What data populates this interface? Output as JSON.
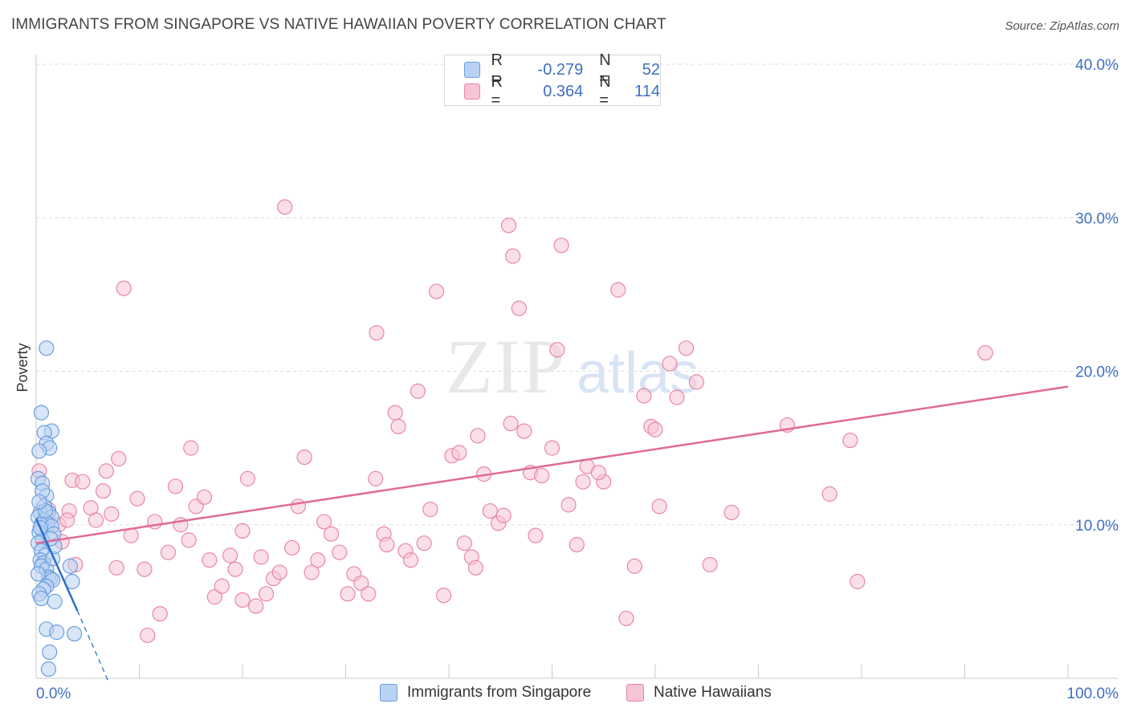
{
  "title": "IMMIGRANTS FROM SINGAPORE VS NATIVE HAWAIIAN POVERTY CORRELATION CHART",
  "source": "Source: ZipAtlas.com",
  "watermark": {
    "zip": "ZIP",
    "atlas": "atlas"
  },
  "legend": {
    "row1": {
      "r_label": "R =",
      "r_value": "-0.279",
      "n_label": "N =",
      "n_value": "52"
    },
    "row2": {
      "r_label": "R =",
      "r_value": "0.364",
      "n_label": "N =",
      "n_value": "114"
    }
  },
  "bottom_legend": {
    "series1": "Immigrants from Singapore",
    "series2": "Native Hawaiians"
  },
  "colors": {
    "blue": "#6a9ee0",
    "blue_fill": "#b9d1f3",
    "blue_line": "#2a6fd0",
    "pink": "#e886a7",
    "pink_fill": "#f7c4d4",
    "pink_line": "#e06b94",
    "axis_text": "#3f6fc0"
  },
  "chart_data": {
    "type": "scatter",
    "title": "IMMIGRANTS FROM SINGAPORE VS NATIVE HAWAIIAN POVERTY CORRELATION CHART",
    "xlabel": "",
    "ylabel": "Poverty",
    "xlim": [
      0,
      100
    ],
    "ylim": [
      0,
      40
    ],
    "x_tick_labels": [
      "0.0%",
      "100.0%"
    ],
    "y_ticks": [
      10,
      20,
      30,
      40
    ],
    "y_tick_labels": [
      "10.0%",
      "20.0%",
      "30.0%",
      "40.0%"
    ],
    "series": [
      {
        "name": "Immigrants from Singapore",
        "r": -0.279,
        "n": 52,
        "trend": {
          "x": [
            0,
            4
          ],
          "y": [
            10.4,
            4.4
          ],
          "dashed_x": [
            4,
            7
          ],
          "dashed_y": [
            4.4,
            -0.2
          ]
        },
        "points": [
          [
            1.0,
            21.5
          ],
          [
            0.5,
            17.3
          ],
          [
            1.5,
            16.1
          ],
          [
            0.8,
            16.0
          ],
          [
            1.0,
            15.3
          ],
          [
            1.3,
            15.0
          ],
          [
            0.3,
            14.8
          ],
          [
            0.2,
            13.0
          ],
          [
            0.6,
            12.7
          ],
          [
            1.0,
            11.9
          ],
          [
            0.8,
            11.2
          ],
          [
            0.4,
            10.8
          ],
          [
            1.2,
            10.8
          ],
          [
            0.2,
            10.5
          ],
          [
            1.5,
            10.5
          ],
          [
            0.8,
            10.3
          ],
          [
            1.1,
            10.1
          ],
          [
            0.5,
            10.0
          ],
          [
            1.5,
            9.9
          ],
          [
            0.3,
            9.5
          ],
          [
            1.7,
            9.4
          ],
          [
            0.6,
            9.0
          ],
          [
            0.2,
            8.8
          ],
          [
            0.5,
            8.3
          ],
          [
            0.9,
            8.0
          ],
          [
            0.4,
            7.7
          ],
          [
            0.7,
            7.5
          ],
          [
            0.5,
            7.3
          ],
          [
            1.0,
            7.1
          ],
          [
            3.3,
            7.3
          ],
          [
            1.2,
            6.6
          ],
          [
            1.4,
            6.5
          ],
          [
            1.6,
            6.4
          ],
          [
            3.5,
            6.3
          ],
          [
            1.0,
            6.0
          ],
          [
            0.7,
            5.8
          ],
          [
            0.3,
            5.5
          ],
          [
            0.5,
            5.2
          ],
          [
            1.8,
            5.0
          ],
          [
            1.0,
            3.2
          ],
          [
            2.0,
            3.0
          ],
          [
            3.7,
            2.9
          ],
          [
            1.3,
            1.7
          ],
          [
            1.2,
            0.6
          ],
          [
            0.9,
            10.9
          ],
          [
            0.4,
            9.8
          ],
          [
            1.6,
            7.8
          ],
          [
            0.2,
            6.8
          ],
          [
            0.6,
            12.2
          ],
          [
            1.8,
            8.6
          ],
          [
            0.3,
            11.5
          ],
          [
            1.4,
            9.1
          ]
        ]
      },
      {
        "name": "Native Hawaiians",
        "r": 0.364,
        "n": 114,
        "trend": {
          "x": [
            0,
            100
          ],
          "y": [
            8.8,
            19.0
          ]
        },
        "points": [
          [
            0.3,
            13.5
          ],
          [
            1.2,
            11.0
          ],
          [
            3.2,
            10.9
          ],
          [
            2.2,
            10.0
          ],
          [
            3.0,
            10.3
          ],
          [
            3.5,
            12.9
          ],
          [
            4.5,
            12.8
          ],
          [
            3.8,
            7.4
          ],
          [
            5.3,
            11.1
          ],
          [
            5.8,
            10.3
          ],
          [
            6.5,
            12.2
          ],
          [
            6.8,
            13.5
          ],
          [
            7.3,
            10.7
          ],
          [
            7.8,
            7.2
          ],
          [
            8.5,
            25.4
          ],
          [
            9.2,
            9.3
          ],
          [
            9.8,
            11.7
          ],
          [
            10.5,
            7.1
          ],
          [
            10.8,
            2.8
          ],
          [
            11.5,
            10.2
          ],
          [
            12.0,
            4.2
          ],
          [
            12.8,
            8.2
          ],
          [
            13.5,
            12.5
          ],
          [
            14.0,
            10.0
          ],
          [
            14.8,
            9.0
          ],
          [
            15.5,
            11.2
          ],
          [
            16.3,
            11.8
          ],
          [
            16.8,
            7.7
          ],
          [
            17.3,
            5.3
          ],
          [
            18.0,
            6.0
          ],
          [
            18.8,
            8.0
          ],
          [
            19.3,
            7.1
          ],
          [
            20.0,
            5.1
          ],
          [
            20.5,
            13.0
          ],
          [
            21.3,
            4.7
          ],
          [
            21.8,
            7.9
          ],
          [
            22.3,
            5.5
          ],
          [
            23.0,
            6.5
          ],
          [
            23.6,
            6.9
          ],
          [
            24.1,
            30.7
          ],
          [
            24.8,
            8.5
          ],
          [
            25.4,
            11.2
          ],
          [
            26.0,
            14.4
          ],
          [
            26.7,
            6.9
          ],
          [
            27.3,
            7.7
          ],
          [
            27.9,
            10.2
          ],
          [
            28.6,
            9.4
          ],
          [
            29.4,
            8.2
          ],
          [
            30.2,
            5.5
          ],
          [
            30.8,
            6.8
          ],
          [
            31.5,
            6.2
          ],
          [
            32.2,
            5.5
          ],
          [
            32.9,
            13.0
          ],
          [
            33.7,
            9.4
          ],
          [
            34.0,
            8.7
          ],
          [
            34.8,
            17.3
          ],
          [
            35.1,
            16.4
          ],
          [
            35.8,
            8.3
          ],
          [
            36.3,
            7.7
          ],
          [
            37.0,
            18.7
          ],
          [
            37.6,
            8.8
          ],
          [
            38.2,
            11.0
          ],
          [
            38.8,
            25.2
          ],
          [
            39.5,
            5.4
          ],
          [
            40.3,
            14.5
          ],
          [
            41.0,
            14.7
          ],
          [
            41.5,
            8.8
          ],
          [
            42.2,
            7.9
          ],
          [
            42.8,
            15.8
          ],
          [
            43.4,
            13.3
          ],
          [
            44.0,
            10.9
          ],
          [
            44.8,
            10.1
          ],
          [
            45.3,
            10.6
          ],
          [
            45.8,
            29.5
          ],
          [
            46.2,
            27.5
          ],
          [
            46.8,
            24.1
          ],
          [
            47.3,
            16.1
          ],
          [
            47.9,
            13.4
          ],
          [
            48.4,
            9.3
          ],
          [
            49.0,
            13.2
          ],
          [
            50.0,
            15.0
          ],
          [
            50.5,
            21.4
          ],
          [
            50.9,
            28.2
          ],
          [
            51.6,
            11.3
          ],
          [
            52.4,
            8.7
          ],
          [
            53.0,
            12.8
          ],
          [
            53.4,
            13.8
          ],
          [
            55.0,
            12.8
          ],
          [
            56.4,
            25.3
          ],
          [
            57.2,
            3.9
          ],
          [
            58.0,
            7.3
          ],
          [
            58.9,
            18.4
          ],
          [
            59.6,
            16.4
          ],
          [
            60.4,
            11.2
          ],
          [
            61.4,
            20.5
          ],
          [
            62.1,
            18.3
          ],
          [
            63.0,
            21.5
          ],
          [
            64.0,
            19.3
          ],
          [
            65.3,
            7.4
          ],
          [
            67.4,
            10.8
          ],
          [
            72.8,
            16.5
          ],
          [
            76.9,
            12.0
          ],
          [
            78.9,
            15.5
          ],
          [
            79.6,
            6.3
          ],
          [
            92.0,
            21.2
          ],
          [
            2.5,
            8.9
          ],
          [
            8.0,
            14.3
          ],
          [
            15.0,
            15.0
          ],
          [
            20.0,
            9.6
          ],
          [
            33.0,
            22.5
          ],
          [
            54.5,
            13.4
          ],
          [
            60.0,
            16.2
          ],
          [
            46.0,
            16.6
          ],
          [
            42.6,
            7.2
          ]
        ]
      }
    ]
  }
}
